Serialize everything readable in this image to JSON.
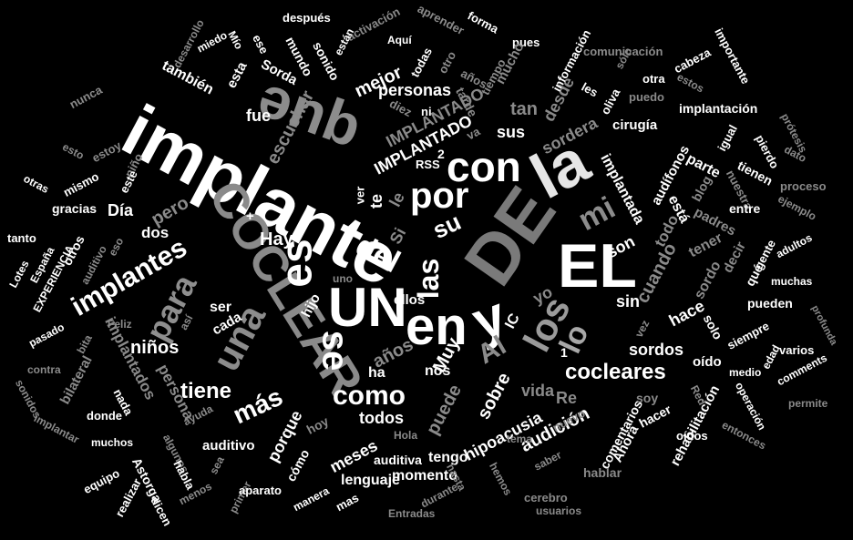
{
  "words": [
    {
      "text": "implante",
      "tone": "#ffffff"
    },
    {
      "text": "que",
      "tone": "#8c8c8c"
    },
    {
      "text": "DE",
      "tone": "#7a7a7a"
    },
    {
      "text": "la",
      "tone": "#e6e6e6"
    },
    {
      "text": "EL",
      "tone": "#ffffff"
    },
    {
      "text": "UN",
      "tone": "#ffffff"
    },
    {
      "text": "en",
      "tone": "#ffffff"
    },
    {
      "text": "y",
      "tone": "#ffffff"
    },
    {
      "text": "COCLEAR",
      "tone": "#8a8a8a"
    },
    {
      "text": "es",
      "tone": "#ffffff"
    },
    {
      "text": "con",
      "tone": "#ffffff"
    },
    {
      "text": "por",
      "tone": "#ffffff"
    },
    {
      "text": "una",
      "tone": "#8c8c8c"
    },
    {
      "text": "los",
      "tone": "#9a9a9a"
    },
    {
      "text": "se",
      "tone": "#ffffff"
    },
    {
      "text": "para",
      "tone": "#8e8e8e"
    },
    {
      "text": "implantes",
      "tone": "#ffffff"
    },
    {
      "text": "del",
      "tone": "#ffffff"
    },
    {
      "text": "las",
      "tone": "#ffffff"
    },
    {
      "text": "como",
      "tone": "#ffffff"
    },
    {
      "text": "cocleares",
      "tone": "#ffffff"
    },
    {
      "text": "más",
      "tone": "#ffffff"
    },
    {
      "text": "tiene",
      "tone": "#ffffff"
    },
    {
      "text": "Al",
      "tone": "#8c8c8c"
    },
    {
      "text": "lo",
      "tone": "#a8a8a8"
    },
    {
      "text": "mi",
      "tone": "#8c8c8c"
    },
    {
      "text": "personas",
      "tone": "#ffffff"
    },
    {
      "text": "mejor",
      "tone": "#ffffff"
    },
    {
      "text": "también",
      "tone": "#ffffff"
    },
    {
      "text": "fue",
      "tone": "#ffffff"
    },
    {
      "text": "escuchar",
      "tone": "#8a8a8a"
    },
    {
      "text": "IMPLANTADO",
      "tone": "#8a8a8a"
    },
    {
      "text": "IMPLANTADO",
      "tone": "#ffffff"
    },
    {
      "text": "sus",
      "tone": "#ffffff"
    },
    {
      "text": "tan",
      "tone": "#8a8a8a"
    },
    {
      "text": "desde",
      "tone": "#8a8a8a"
    },
    {
      "text": "su",
      "tone": "#ffffff"
    },
    {
      "text": "Hay",
      "tone": "#ffffff"
    },
    {
      "text": "pero",
      "tone": "#8a8a8a"
    },
    {
      "text": "Día",
      "tone": "#ffffff"
    },
    {
      "text": "dos",
      "tone": "#ffffff"
    },
    {
      "text": "niños",
      "tone": "#ffffff"
    },
    {
      "text": "ser",
      "tone": "#ffffff"
    },
    {
      "text": "cada",
      "tone": "#ffffff"
    },
    {
      "text": "hijo",
      "tone": "#ffffff"
    },
    {
      "text": "ellos",
      "tone": "#ffffff"
    },
    {
      "text": "años",
      "tone": "#8a8a8a"
    },
    {
      "text": "Muy",
      "tone": "#ffffff"
    },
    {
      "text": "sobre",
      "tone": "#ffffff"
    },
    {
      "text": "nos",
      "tone": "#ffffff"
    },
    {
      "text": "ha",
      "tone": "#ffffff"
    },
    {
      "text": "todos",
      "tone": "#ffffff"
    },
    {
      "text": "puede",
      "tone": "#8a8a8a"
    },
    {
      "text": "vida",
      "tone": "#8a8a8a"
    },
    {
      "text": "audición",
      "tone": "#ffffff"
    },
    {
      "text": "hipoacusia",
      "tone": "#ffffff"
    },
    {
      "text": "meses",
      "tone": "#ffffff"
    },
    {
      "text": "tengo",
      "tone": "#ffffff"
    },
    {
      "text": "momento",
      "tone": "#ffffff"
    },
    {
      "text": "auditiva",
      "tone": "#ffffff"
    },
    {
      "text": "lenguaje",
      "tone": "#ffffff"
    },
    {
      "text": "cómo",
      "tone": "#ffffff"
    },
    {
      "text": "porque",
      "tone": "#ffffff"
    },
    {
      "text": "auditivo",
      "tone": "#ffffff"
    },
    {
      "text": "sin",
      "tone": "#ffffff"
    },
    {
      "text": "yo",
      "tone": "#8a8a8a"
    },
    {
      "text": "IC",
      "tone": "#ffffff"
    },
    {
      "text": "cuando",
      "tone": "#8a8a8a"
    },
    {
      "text": "hace",
      "tone": "#ffffff"
    },
    {
      "text": "son",
      "tone": "#ffffff"
    },
    {
      "text": "todo",
      "tone": "#8a8a8a"
    },
    {
      "text": "implantada",
      "tone": "#ffffff"
    },
    {
      "text": "está",
      "tone": "#ffffff"
    },
    {
      "text": "tener",
      "tone": "#8a8a8a"
    },
    {
      "text": "sordo",
      "tone": "#8a8a8a"
    },
    {
      "text": "decir",
      "tone": "#8a8a8a"
    },
    {
      "text": "sordos",
      "tone": "#ffffff"
    },
    {
      "text": "oído",
      "tone": "#ffffff"
    },
    {
      "text": "solo",
      "tone": "#ffffff"
    },
    {
      "text": "cirugía",
      "tone": "#ffffff"
    },
    {
      "text": "audífonos",
      "tone": "#ffffff"
    },
    {
      "text": "sordera",
      "tone": "#8a8a8a"
    },
    {
      "text": "blog",
      "tone": "#8a8a8a"
    },
    {
      "text": "parte",
      "tone": "#ffffff"
    },
    {
      "text": "padres",
      "tone": "#8a8a8a"
    },
    {
      "text": "tienen",
      "tone": "#ffffff"
    },
    {
      "text": "nuestra",
      "tone": "#8a8a8a"
    },
    {
      "text": "entre",
      "tone": "#ffffff"
    },
    {
      "text": "pueden",
      "tone": "#ffffff"
    },
    {
      "text": "muchas",
      "tone": "#ffffff"
    },
    {
      "text": "qué",
      "tone": "#ffffff"
    },
    {
      "text": "gente",
      "tone": "#ffffff"
    },
    {
      "text": "siempre",
      "tone": "#ffffff"
    },
    {
      "text": "varios",
      "tone": "#ffffff"
    },
    {
      "text": "comments",
      "tone": "#ffffff"
    },
    {
      "text": "edad",
      "tone": "#ffffff"
    },
    {
      "text": "medio",
      "tone": "#ffffff"
    },
    {
      "text": "rehabilitación",
      "tone": "#ffffff"
    },
    {
      "text": "comentarios",
      "tone": "#ffffff"
    },
    {
      "text": "hacer",
      "tone": "#ffffff"
    },
    {
      "text": "oídos",
      "tone": "#ffffff"
    },
    {
      "text": "Ahora",
      "tone": "#ffffff"
    },
    {
      "text": "hablar",
      "tone": "#8a8a8a"
    },
    {
      "text": "soy",
      "tone": "#8a8a8a"
    },
    {
      "text": "Red",
      "tone": "#8a8a8a"
    },
    {
      "text": "operación",
      "tone": "#ffffff"
    },
    {
      "text": "entonces",
      "tone": "#8a8a8a"
    },
    {
      "text": "permite",
      "tone": "#8a8a8a"
    },
    {
      "text": "implantación",
      "tone": "#ffffff"
    },
    {
      "text": "comunicación",
      "tone": "#8a8a8a"
    },
    {
      "text": "información",
      "tone": "#ffffff"
    },
    {
      "text": "importante",
      "tone": "#ffffff"
    },
    {
      "text": "cabeza",
      "tone": "#ffffff"
    },
    {
      "text": "otra",
      "tone": "#ffffff"
    },
    {
      "text": "estos",
      "tone": "#8a8a8a"
    },
    {
      "text": "puedo",
      "tone": "#8a8a8a"
    },
    {
      "text": "igual",
      "tone": "#ffffff"
    },
    {
      "text": "pierdo",
      "tone": "#ffffff"
    },
    {
      "text": "prótesis",
      "tone": "#8a8a8a"
    },
    {
      "text": "dato",
      "tone": "#8a8a8a"
    },
    {
      "text": "proceso",
      "tone": "#8a8a8a"
    },
    {
      "text": "ejemplo",
      "tone": "#8a8a8a"
    },
    {
      "text": "adultos",
      "tone": "#ffffff"
    },
    {
      "text": "profunda",
      "tone": "#8a8a8a"
    },
    {
      "text": "después",
      "tone": "#ffffff"
    },
    {
      "text": "activación",
      "tone": "#8a8a8a"
    },
    {
      "text": "aprender",
      "tone": "#8a8a8a"
    },
    {
      "text": "forma",
      "tone": "#ffffff"
    },
    {
      "text": "pues",
      "tone": "#ffffff"
    },
    {
      "text": "Aquí",
      "tone": "#ffffff"
    },
    {
      "text": "están",
      "tone": "#ffffff"
    },
    {
      "text": "sonido",
      "tone": "#ffffff"
    },
    {
      "text": "mundo",
      "tone": "#ffffff"
    },
    {
      "text": "ese",
      "tone": "#ffffff"
    },
    {
      "text": "Mío",
      "tone": "#ffffff"
    },
    {
      "text": "miedo",
      "tone": "#ffffff"
    },
    {
      "text": "desarrollo",
      "tone": "#8a8a8a"
    },
    {
      "text": "esta",
      "tone": "#ffffff"
    },
    {
      "text": "Sorda",
      "tone": "#ffffff"
    },
    {
      "text": "todas",
      "tone": "#ffffff"
    },
    {
      "text": "otro",
      "tone": "#8a8a8a"
    },
    {
      "text": "años",
      "tone": "#8a8a8a"
    },
    {
      "text": "mucho",
      "tone": "#8a8a8a"
    },
    {
      "text": "tiempo",
      "tone": "#8a8a8a"
    },
    {
      "text": "tarde",
      "tone": "#8a8a8a"
    },
    {
      "text": "ni",
      "tone": "#ffffff"
    },
    {
      "text": "diez",
      "tone": "#8a8a8a"
    },
    {
      "text": "va",
      "tone": "#8a8a8a"
    },
    {
      "text": "nunca",
      "tone": "#8a8a8a"
    },
    {
      "text": "esto",
      "tone": "#8a8a8a"
    },
    {
      "text": "estoy",
      "tone": "#8a8a8a"
    },
    {
      "text": "niño",
      "tone": "#8a8a8a"
    },
    {
      "text": "este",
      "tone": "#ffffff"
    },
    {
      "text": "mismo",
      "tone": "#ffffff"
    },
    {
      "text": "otras",
      "tone": "#ffffff"
    },
    {
      "text": "gracias",
      "tone": "#ffffff"
    },
    {
      "text": "tanto",
      "tone": "#ffffff"
    },
    {
      "text": "Lotes",
      "tone": "#ffffff"
    },
    {
      "text": "España",
      "tone": "#ffffff"
    },
    {
      "text": "EXPERIENCIA",
      "tone": "#ffffff"
    },
    {
      "text": "otros",
      "tone": "#ffffff"
    },
    {
      "text": "auditivo",
      "tone": "#8a8a8a"
    },
    {
      "text": "eso",
      "tone": "#8a8a8a"
    },
    {
      "text": "pasado",
      "tone": "#ffffff"
    },
    {
      "text": "bilateral",
      "tone": "#8a8a8a"
    },
    {
      "text": "bita",
      "tone": "#8a8a8a"
    },
    {
      "text": "implantados",
      "tone": "#8a8a8a"
    },
    {
      "text": "persona",
      "tone": "#8a8a8a"
    },
    {
      "text": "Feliz",
      "tone": "#8a8a8a"
    },
    {
      "text": "así",
      "tone": "#8a8a8a"
    },
    {
      "text": "contra",
      "tone": "#8a8a8a"
    },
    {
      "text": "sonidos",
      "tone": "#8a8a8a"
    },
    {
      "text": "donde",
      "tone": "#ffffff"
    },
    {
      "text": "nada",
      "tone": "#ffffff"
    },
    {
      "text": "ayuda",
      "tone": "#8a8a8a"
    },
    {
      "text": "implantar",
      "tone": "#8a8a8a"
    },
    {
      "text": "muchos",
      "tone": "#ffffff"
    },
    {
      "text": "equipo",
      "tone": "#ffffff"
    },
    {
      "text": "Astorga",
      "tone": "#ffffff"
    },
    {
      "text": "realizar",
      "tone": "#ffffff"
    },
    {
      "text": "dicen",
      "tone": "#ffffff"
    },
    {
      "text": "algunos",
      "tone": "#8a8a8a"
    },
    {
      "text": "habla",
      "tone": "#ffffff"
    },
    {
      "text": "menos",
      "tone": "#8a8a8a"
    },
    {
      "text": "sea",
      "tone": "#8a8a8a"
    },
    {
      "text": "primer",
      "tone": "#8a8a8a"
    },
    {
      "text": "aparato",
      "tone": "#ffffff"
    },
    {
      "text": "manera",
      "tone": "#ffffff"
    },
    {
      "text": "mas",
      "tone": "#ffffff"
    },
    {
      "text": "Entradas",
      "tone": "#8a8a8a"
    },
    {
      "text": "durante",
      "tone": "#8a8a8a"
    },
    {
      "text": "hasta",
      "tone": "#8a8a8a"
    },
    {
      "text": "hemos",
      "tone": "#8a8a8a"
    },
    {
      "text": "saber",
      "tone": "#8a8a8a"
    },
    {
      "text": "cerebro",
      "tone": "#8a8a8a"
    },
    {
      "text": "usuarios",
      "tone": "#8a8a8a"
    },
    {
      "text": "tema",
      "tone": "#8a8a8a"
    },
    {
      "text": "Hola",
      "tone": "#8a8a8a"
    },
    {
      "text": "hoy",
      "tone": "#8a8a8a"
    },
    {
      "text": "uno",
      "tone": "#8a8a8a"
    },
    {
      "text": "RSS",
      "tone": "#ffffff"
    },
    {
      "text": "Re",
      "tone": "#8a8a8a"
    },
    {
      "text": "nuevo",
      "tone": "#8a8a8a"
    },
    {
      "text": "vez",
      "tone": "#8a8a8a"
    },
    {
      "text": "ver",
      "tone": "#ffffff"
    },
    {
      "text": "te",
      "tone": "#ffffff"
    },
    {
      "text": "Si",
      "tone": "#8a8a8a"
    },
    {
      "text": "le",
      "tone": "#8a8a8a"
    },
    {
      "text": "les",
      "tone": "#ffffff"
    },
    {
      "text": "oliva",
      "tone": "#ffffff"
    },
    {
      "text": "sólo",
      "tone": "#8a8a8a"
    },
    {
      "text": "2",
      "tone": "#ffffff"
    },
    {
      "text": "+",
      "tone": "#ffffff"
    },
    {
      "text": "1",
      "tone": "#ffffff"
    }
  ]
}
